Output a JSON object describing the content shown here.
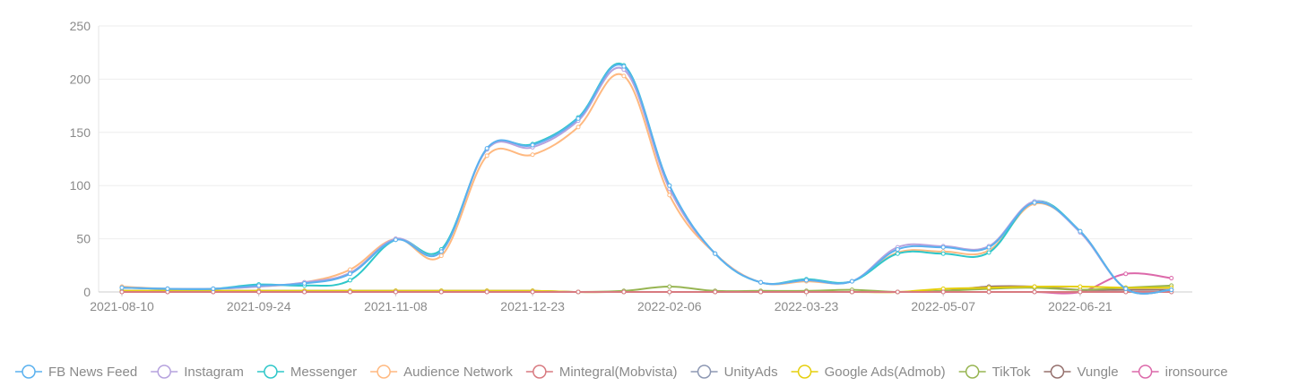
{
  "chart_data": {
    "type": "line",
    "title": "",
    "xlabel": "",
    "ylabel": "",
    "ylim": [
      0,
      250
    ],
    "yticks": [
      0,
      50,
      100,
      150,
      200,
      250
    ],
    "grid": true,
    "legend_position": "bottom",
    "x": [
      "2021-08-10",
      "2021-08-25",
      "2021-09-09",
      "2021-09-24",
      "2021-10-09",
      "2021-10-24",
      "2021-11-08",
      "2021-11-23",
      "2021-12-08",
      "2021-12-23",
      "2022-01-07",
      "2022-01-22",
      "2022-02-06",
      "2022-02-21",
      "2022-03-08",
      "2022-03-23",
      "2022-04-07",
      "2022-04-22",
      "2022-05-07",
      "2022-05-22",
      "2022-06-06",
      "2022-06-21",
      "2022-07-06",
      "2022-07-21"
    ],
    "xtick_labels": [
      "2021-08-10",
      "2021-09-24",
      "2021-11-08",
      "2021-12-23",
      "2022-02-06",
      "2022-03-23",
      "2022-05-07",
      "2022-06-21"
    ],
    "series": [
      {
        "name": "FB News Feed",
        "color": "#5ab1ef",
        "values": [
          4,
          3,
          3,
          6,
          8,
          17,
          49,
          38,
          135,
          138,
          163,
          212,
          100,
          36,
          9,
          11,
          10,
          40,
          42,
          42,
          84,
          57,
          3,
          2
        ]
      },
      {
        "name": "Instagram",
        "color": "#b6a2de",
        "values": [
          4,
          3,
          3,
          5,
          9,
          18,
          50,
          38,
          134,
          136,
          161,
          209,
          97,
          36,
          9,
          11,
          10,
          42,
          43,
          43,
          85,
          56,
          3,
          2
        ]
      },
      {
        "name": "Messenger",
        "color": "#2ec7c9",
        "values": [
          4,
          3,
          3,
          7,
          6,
          11,
          49,
          40,
          134,
          139,
          164,
          213,
          100,
          36,
          9,
          12,
          10,
          36,
          36,
          37,
          85,
          57,
          3,
          2
        ]
      },
      {
        "name": "Audience Network",
        "color": "#ffb980",
        "values": [
          5,
          3,
          3,
          5,
          9,
          21,
          50,
          34,
          128,
          129,
          155,
          203,
          91,
          36,
          9,
          10,
          10,
          37,
          38,
          39,
          83,
          57,
          3,
          2
        ]
      },
      {
        "name": "Mintegral(Mobvista)",
        "color": "#d87a80",
        "values": [
          0,
          0,
          0,
          0,
          0,
          0,
          0,
          0,
          0,
          0,
          0,
          0,
          0,
          0,
          0,
          0,
          0,
          0,
          0,
          0,
          0,
          0,
          0,
          0
        ]
      },
      {
        "name": "UnityAds",
        "color": "#8d98b3",
        "values": [
          0,
          0,
          0,
          0,
          0,
          0,
          0,
          0,
          0,
          0,
          0,
          0,
          0,
          0,
          0,
          0,
          0,
          0,
          0,
          0,
          0,
          0,
          0,
          0
        ]
      },
      {
        "name": "Google Ads(Admob)",
        "color": "#e5cf0d",
        "values": [
          1,
          1,
          1,
          1,
          1,
          1,
          1,
          1,
          1,
          1,
          0,
          0,
          0,
          0,
          0,
          0,
          0,
          0,
          3,
          4,
          5,
          5,
          4,
          4
        ]
      },
      {
        "name": "TikTok",
        "color": "#97b552",
        "values": [
          1,
          1,
          1,
          1,
          1,
          1,
          1,
          1,
          1,
          1,
          0,
          1,
          5,
          1,
          1,
          1,
          2,
          0,
          1,
          3,
          4,
          2,
          4,
          6
        ]
      },
      {
        "name": "Vungle",
        "color": "#95706d",
        "values": [
          1,
          1,
          1,
          1,
          1,
          1,
          1,
          1,
          1,
          1,
          0,
          0,
          0,
          0,
          0,
          0,
          0,
          0,
          1,
          5,
          5,
          2,
          2,
          2
        ]
      },
      {
        "name": "ironsource",
        "color": "#dc69aa",
        "values": [
          0,
          0,
          0,
          0,
          0,
          0,
          0,
          0,
          0,
          0,
          0,
          0,
          0,
          0,
          0,
          0,
          0,
          0,
          0,
          0,
          0,
          0,
          17,
          13
        ]
      }
    ]
  }
}
